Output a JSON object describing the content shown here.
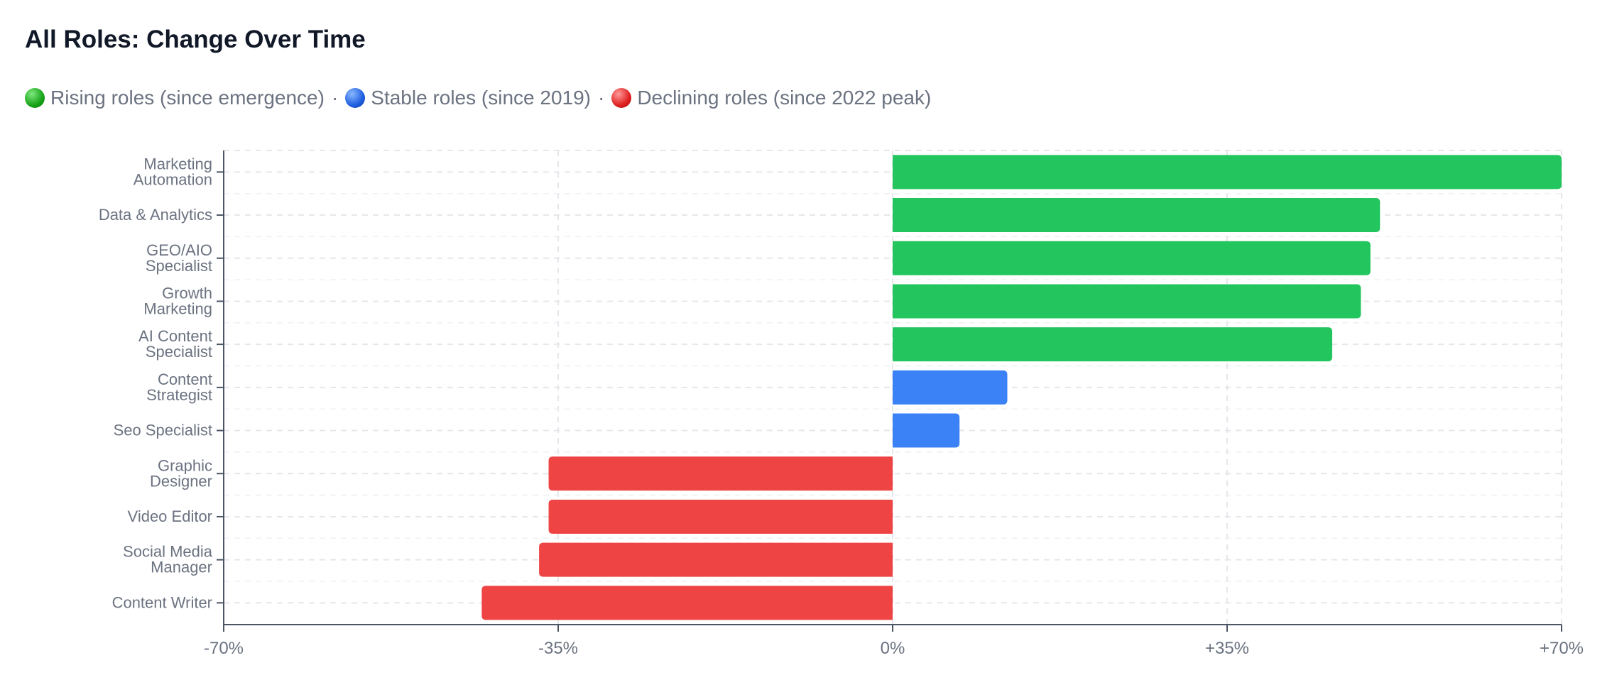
{
  "chart_data": {
    "type": "bar",
    "orientation": "horizontal",
    "title": "All Roles: Change Over Time",
    "legend": [
      {
        "label": "Rising roles (since emergence)",
        "color": "#22c55e"
      },
      {
        "label": "Stable roles (since 2019)",
        "color": "#3b82f6"
      },
      {
        "label": "Declining roles (since 2022 peak)",
        "color": "#ef4444"
      }
    ],
    "legend_separator": "·",
    "categories": [
      [
        "Marketing",
        "Automation"
      ],
      [
        "Data & Analytics"
      ],
      [
        "GEO/AIO",
        "Specialist"
      ],
      [
        "Growth",
        "Marketing"
      ],
      [
        "AI Content",
        "Specialist"
      ],
      [
        "Content",
        "Strategist"
      ],
      [
        "Seo Specialist"
      ],
      [
        "Graphic",
        "Designer"
      ],
      [
        "Video Editor"
      ],
      [
        "Social Media",
        "Manager"
      ],
      [
        "Content Writer"
      ]
    ],
    "values": [
      70,
      51,
      50,
      49,
      46,
      12,
      7,
      -36,
      -36,
      -37,
      -43
    ],
    "colors": [
      "#22c55e",
      "#22c55e",
      "#22c55e",
      "#22c55e",
      "#22c55e",
      "#3b82f6",
      "#3b82f6",
      "#ef4444",
      "#ef4444",
      "#ef4444",
      "#ef4444"
    ],
    "xlim": [
      -70,
      70
    ],
    "xticks": [
      -70,
      -35,
      0,
      35,
      70
    ],
    "xtick_labels": [
      "-70%",
      "-35%",
      "0%",
      "+35%",
      "+70%"
    ],
    "grid": true
  }
}
